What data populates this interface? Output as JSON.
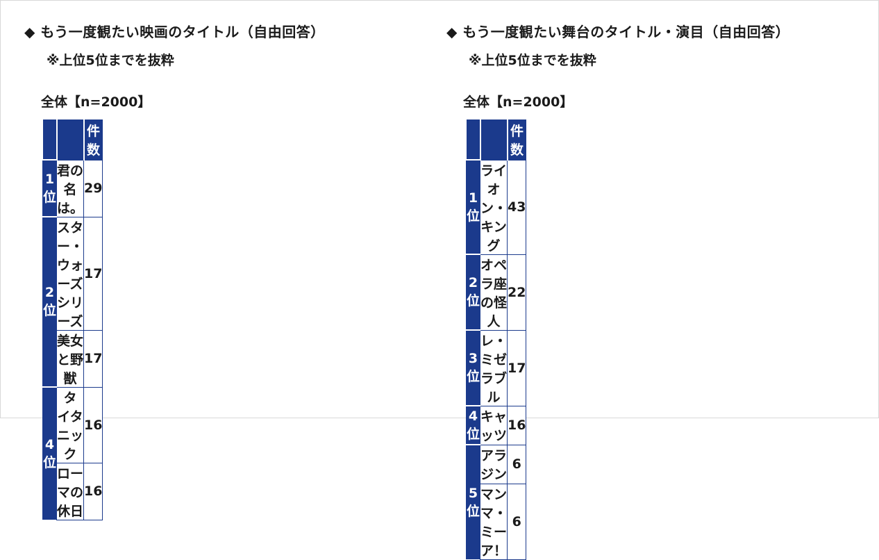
{
  "left": {
    "heading": "◆ もう一度観たい映画のタイトル（自由回答）",
    "note": "※上位5位までを抜粋",
    "base": "全体【n=2000】",
    "column_headers": {
      "rank": "",
      "title": "",
      "count": "件数"
    },
    "rows": [
      {
        "rank": "1位",
        "title": "君の名は。",
        "count": "29"
      },
      {
        "rank": "2位",
        "title": "スター・ウォーズシリーズ",
        "count": "17"
      },
      {
        "rank": "",
        "title": "美女と野獣",
        "count": "17"
      },
      {
        "rank": "4位",
        "title": "タイタニック",
        "count": "16"
      },
      {
        "rank": "",
        "title": "ローマの休日",
        "count": "16"
      }
    ]
  },
  "right": {
    "heading": "◆ もう一度観たい舞台のタイトル・演目（自由回答）",
    "note": "※上位5位までを抜粋",
    "base": "全体【n=2000】",
    "column_headers": {
      "rank": "",
      "title": "",
      "count": "件数"
    },
    "rows": [
      {
        "rank": "1位",
        "title": "ライオン・キング",
        "count": "43"
      },
      {
        "rank": "2位",
        "title": "オペラ座の怪人",
        "count": "22"
      },
      {
        "rank": "3位",
        "title": "レ・ミゼラブル",
        "count": "17"
      },
      {
        "rank": "4位",
        "title": "キャッツ",
        "count": "16"
      },
      {
        "rank": "5位",
        "title": "アラジン",
        "count": "6"
      },
      {
        "rank": "",
        "title": "マンマ・ミーア！",
        "count": "6"
      }
    ]
  },
  "colors": {
    "header_bg": "#1b3a8c",
    "header_text": "#ffffff",
    "border": "#1b3a8c"
  }
}
